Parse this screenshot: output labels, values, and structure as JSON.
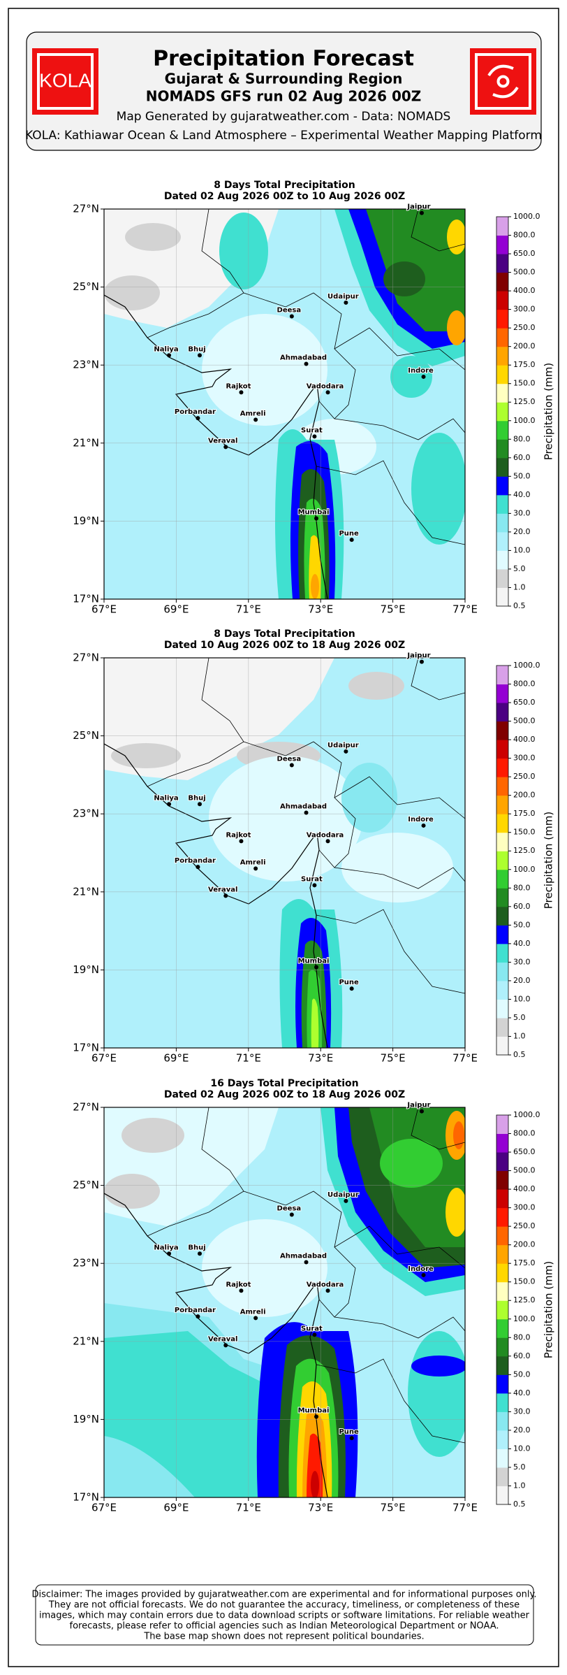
{
  "header": {
    "logo": "KOLA",
    "title": "Precipitation Forecast",
    "subtitle": "Gujarat & Surrounding Region",
    "run": "NOMADS GFS run 02 Aug 2026 00Z",
    "credit": "Map Generated by gujaratweather.com - Data: NOMADS",
    "platform": "KOLA: Kathiawar Ocean & Land Atmosphere – Experimental Weather Mapping Platform"
  },
  "chart_data": [
    {
      "type": "map",
      "title": "8 Days Total Precipitation",
      "subtitle": "Dated 02 Aug 2026 00Z to 10 Aug 2026 00Z",
      "xlim": [
        67,
        77
      ],
      "ylim": [
        17,
        27
      ],
      "xticks": [
        {
          "value": 67,
          "label": "67°E"
        },
        {
          "value": 69,
          "label": "69°E"
        },
        {
          "value": 71,
          "label": "71°E"
        },
        {
          "value": 73,
          "label": "73°E"
        },
        {
          "value": 75,
          "label": "75°E"
        },
        {
          "value": 77,
          "label": "77°E"
        }
      ],
      "yticks": [
        {
          "value": 17,
          "label": "17°N"
        },
        {
          "value": 19,
          "label": "19°N"
        },
        {
          "value": 21,
          "label": "21°N"
        },
        {
          "value": 23,
          "label": "23°N"
        },
        {
          "value": 25,
          "label": "25°N"
        },
        {
          "value": 27,
          "label": "27°N"
        }
      ],
      "grid": true,
      "cities": {
        "names": [
          "Jaipur",
          "Udaipur",
          "Deesa",
          "Naliya",
          "Bhuj",
          "Ahmadabad",
          "Indore",
          "Rajkot",
          "Vadodara",
          "Porbandar",
          "Amreli",
          "Surat",
          "Veraval",
          "Mumbai",
          "Pune"
        ],
        "lon": [
          75.8,
          73.7,
          72.2,
          68.8,
          69.65,
          72.6,
          75.85,
          70.8,
          73.2,
          69.6,
          71.2,
          72.83,
          70.37,
          72.88,
          73.86
        ],
        "lat": [
          26.9,
          24.6,
          24.25,
          23.25,
          23.25,
          23.03,
          22.7,
          22.3,
          22.3,
          21.64,
          21.6,
          21.17,
          20.9,
          19.07,
          18.52
        ]
      },
      "colorbar": {
        "label": "Precipitation (mm)",
        "levels": [
          0.5,
          {
            "value": 1,
            "label": "1.0"
          },
          {
            "value": 5,
            "label": "5.0"
          },
          {
            "value": 10,
            "label": "10.0"
          },
          {
            "value": 20,
            "label": "20.0"
          },
          {
            "value": 30,
            "label": "30.0"
          },
          {
            "value": 40,
            "label": "40.0"
          },
          {
            "value": 50,
            "label": "50.0"
          },
          {
            "value": 60,
            "label": "60.0"
          },
          {
            "value": 80,
            "label": "80.0"
          },
          {
            "value": 100,
            "label": "100.0"
          },
          {
            "value": 125,
            "label": "125.0"
          },
          {
            "value": 150,
            "label": "150.0"
          },
          {
            "value": 175,
            "label": "175.0"
          },
          {
            "value": 200,
            "label": "200.0"
          },
          {
            "value": 250,
            "label": "250.0"
          },
          {
            "value": 300,
            "label": "300.0"
          },
          {
            "value": 400,
            "label": "400.0"
          },
          {
            "value": 500,
            "label": "500.0"
          },
          {
            "value": 650,
            "label": "650.0"
          },
          {
            "value": 800,
            "label": "800.0"
          },
          {
            "value": 1000,
            "label": "1000.0"
          }
        ],
        "colors": [
          "#f4f4f4",
          "#d3d3d3",
          "#e0fbff",
          "#b0f0fb",
          "#88e8f0",
          "#40e0d0",
          "#0000ff",
          "#1e5e1e",
          "#228b22",
          "#32cd32",
          "#adff2f",
          "#ffffc0",
          "#ffd700",
          "#ffa500",
          "#ff6600",
          "#ff1a00",
          "#cc0000",
          "#800000",
          "#4b0082",
          "#9400d3",
          "#d8a0e8",
          "#e8d4ff"
        ]
      }
    },
    {
      "type": "map",
      "title": "8 Days Total Precipitation",
      "subtitle": "Dated 10 Aug 2026 00Z to 18 Aug 2026 00Z",
      "xlim": [
        67,
        77
      ],
      "ylim": [
        17,
        27
      ],
      "xticks": [
        {
          "value": 67,
          "label": "67°E"
        },
        {
          "value": 69,
          "label": "69°E"
        },
        {
          "value": 71,
          "label": "71°E"
        },
        {
          "value": 73,
          "label": "73°E"
        },
        {
          "value": 75,
          "label": "75°E"
        },
        {
          "value": 77,
          "label": "77°E"
        }
      ],
      "yticks": [
        {
          "value": 17,
          "label": "17°N"
        },
        {
          "value": 19,
          "label": "19°N"
        },
        {
          "value": 21,
          "label": "21°N"
        },
        {
          "value": 23,
          "label": "23°N"
        },
        {
          "value": 25,
          "label": "25°N"
        },
        {
          "value": 27,
          "label": "27°N"
        }
      ],
      "grid": true,
      "cities": {
        "names": [
          "Jaipur",
          "Udaipur",
          "Deesa",
          "Naliya",
          "Bhuj",
          "Ahmadabad",
          "Indore",
          "Rajkot",
          "Vadodara",
          "Porbandar",
          "Amreli",
          "Surat",
          "Veraval",
          "Mumbai",
          "Pune"
        ],
        "lon": [
          75.8,
          73.7,
          72.2,
          68.8,
          69.65,
          72.6,
          75.85,
          70.8,
          73.2,
          69.6,
          71.2,
          72.83,
          70.37,
          72.88,
          73.86
        ],
        "lat": [
          26.9,
          24.6,
          24.25,
          23.25,
          23.25,
          23.03,
          22.7,
          22.3,
          22.3,
          21.64,
          21.6,
          21.17,
          20.9,
          19.07,
          18.52
        ]
      },
      "colorbar": {
        "label": "Precipitation (mm)",
        "levels": [
          0.5,
          {
            "value": 1,
            "label": "1.0"
          },
          {
            "value": 5,
            "label": "5.0"
          },
          {
            "value": 10,
            "label": "10.0"
          },
          {
            "value": 20,
            "label": "20.0"
          },
          {
            "value": 30,
            "label": "30.0"
          },
          {
            "value": 40,
            "label": "40.0"
          },
          {
            "value": 50,
            "label": "50.0"
          },
          {
            "value": 60,
            "label": "60.0"
          },
          {
            "value": 80,
            "label": "80.0"
          },
          {
            "value": 100,
            "label": "100.0"
          },
          {
            "value": 125,
            "label": "125.0"
          },
          {
            "value": 150,
            "label": "150.0"
          },
          {
            "value": 175,
            "label": "175.0"
          },
          {
            "value": 200,
            "label": "200.0"
          },
          {
            "value": 250,
            "label": "250.0"
          },
          {
            "value": 300,
            "label": "300.0"
          },
          {
            "value": 400,
            "label": "400.0"
          },
          {
            "value": 500,
            "label": "500.0"
          },
          {
            "value": 650,
            "label": "650.0"
          },
          {
            "value": 800,
            "label": "800.0"
          },
          {
            "value": 1000,
            "label": "1000.0"
          }
        ],
        "colors": [
          "#f4f4f4",
          "#d3d3d3",
          "#e0fbff",
          "#b0f0fb",
          "#88e8f0",
          "#40e0d0",
          "#0000ff",
          "#1e5e1e",
          "#228b22",
          "#32cd32",
          "#adff2f",
          "#ffffc0",
          "#ffd700",
          "#ffa500",
          "#ff6600",
          "#ff1a00",
          "#cc0000",
          "#800000",
          "#4b0082",
          "#9400d3",
          "#d8a0e8",
          "#e8d4ff"
        ]
      }
    },
    {
      "type": "map",
      "title": "16 Days Total Precipitation",
      "subtitle": "Dated 02 Aug 2026 00Z to 18 Aug 2026 00Z",
      "xlim": [
        67,
        77
      ],
      "ylim": [
        17,
        27
      ],
      "xticks": [
        {
          "value": 67,
          "label": "67°E"
        },
        {
          "value": 69,
          "label": "69°E"
        },
        {
          "value": 71,
          "label": "71°E"
        },
        {
          "value": 73,
          "label": "73°E"
        },
        {
          "value": 75,
          "label": "75°E"
        },
        {
          "value": 77,
          "label": "77°E"
        }
      ],
      "yticks": [
        {
          "value": 17,
          "label": "17°N"
        },
        {
          "value": 19,
          "label": "19°N"
        },
        {
          "value": 21,
          "label": "21°N"
        },
        {
          "value": 23,
          "label": "23°N"
        },
        {
          "value": 25,
          "label": "25°N"
        },
        {
          "value": 27,
          "label": "27°N"
        }
      ],
      "grid": true,
      "cities": {
        "names": [
          "Jaipur",
          "Udaipur",
          "Deesa",
          "Naliya",
          "Bhuj",
          "Ahmadabad",
          "Indore",
          "Rajkot",
          "Vadodara",
          "Porbandar",
          "Amreli",
          "Surat",
          "Veraval",
          "Mumbai",
          "Pune"
        ],
        "lon": [
          75.8,
          73.7,
          72.2,
          68.8,
          69.65,
          72.6,
          75.85,
          70.8,
          73.2,
          69.6,
          71.2,
          72.83,
          70.37,
          72.88,
          73.86
        ],
        "lat": [
          26.9,
          24.6,
          24.25,
          23.25,
          23.25,
          23.03,
          22.7,
          22.3,
          22.3,
          21.64,
          21.6,
          21.17,
          20.9,
          19.07,
          18.52
        ]
      },
      "colorbar": {
        "label": "Precipitation (mm)",
        "levels": [
          0.5,
          {
            "value": 1,
            "label": "1.0"
          },
          {
            "value": 5,
            "label": "5.0"
          },
          {
            "value": 10,
            "label": "10.0"
          },
          {
            "value": 20,
            "label": "20.0"
          },
          {
            "value": 30,
            "label": "30.0"
          },
          {
            "value": 40,
            "label": "40.0"
          },
          {
            "value": 50,
            "label": "50.0"
          },
          {
            "value": 60,
            "label": "60.0"
          },
          {
            "value": 80,
            "label": "80.0"
          },
          {
            "value": 100,
            "label": "100.0"
          },
          {
            "value": 125,
            "label": "125.0"
          },
          {
            "value": 150,
            "label": "150.0"
          },
          {
            "value": 175,
            "label": "175.0"
          },
          {
            "value": 200,
            "label": "200.0"
          },
          {
            "value": 250,
            "label": "250.0"
          },
          {
            "value": 300,
            "label": "300.0"
          },
          {
            "value": 400,
            "label": "400.0"
          },
          {
            "value": 500,
            "label": "500.0"
          },
          {
            "value": 650,
            "label": "650.0"
          },
          {
            "value": 800,
            "label": "800.0"
          },
          {
            "value": 1000,
            "label": "1000.0"
          }
        ],
        "colors": [
          "#f4f4f4",
          "#d3d3d3",
          "#e0fbff",
          "#b0f0fb",
          "#88e8f0",
          "#40e0d0",
          "#0000ff",
          "#1e5e1e",
          "#228b22",
          "#32cd32",
          "#adff2f",
          "#ffffc0",
          "#ffd700",
          "#ffa500",
          "#ff6600",
          "#ff1a00",
          "#cc0000",
          "#800000",
          "#4b0082",
          "#9400d3",
          "#d8a0e8",
          "#e8d4ff"
        ]
      }
    }
  ],
  "disclaimer": [
    "Disclaimer: The images provided by gujaratweather.com are experimental and for informational purposes only.",
    "They are not official forecasts. We do not guarantee the accuracy, timeliness, or completeness of these",
    "images, which may contain errors due to data download scripts or software limitations. For reliable weather",
    "forecasts, please refer to official agencies such as Indian Meteorological Department or NOAA.",
    "The base map shown does not represent political boundaries."
  ]
}
